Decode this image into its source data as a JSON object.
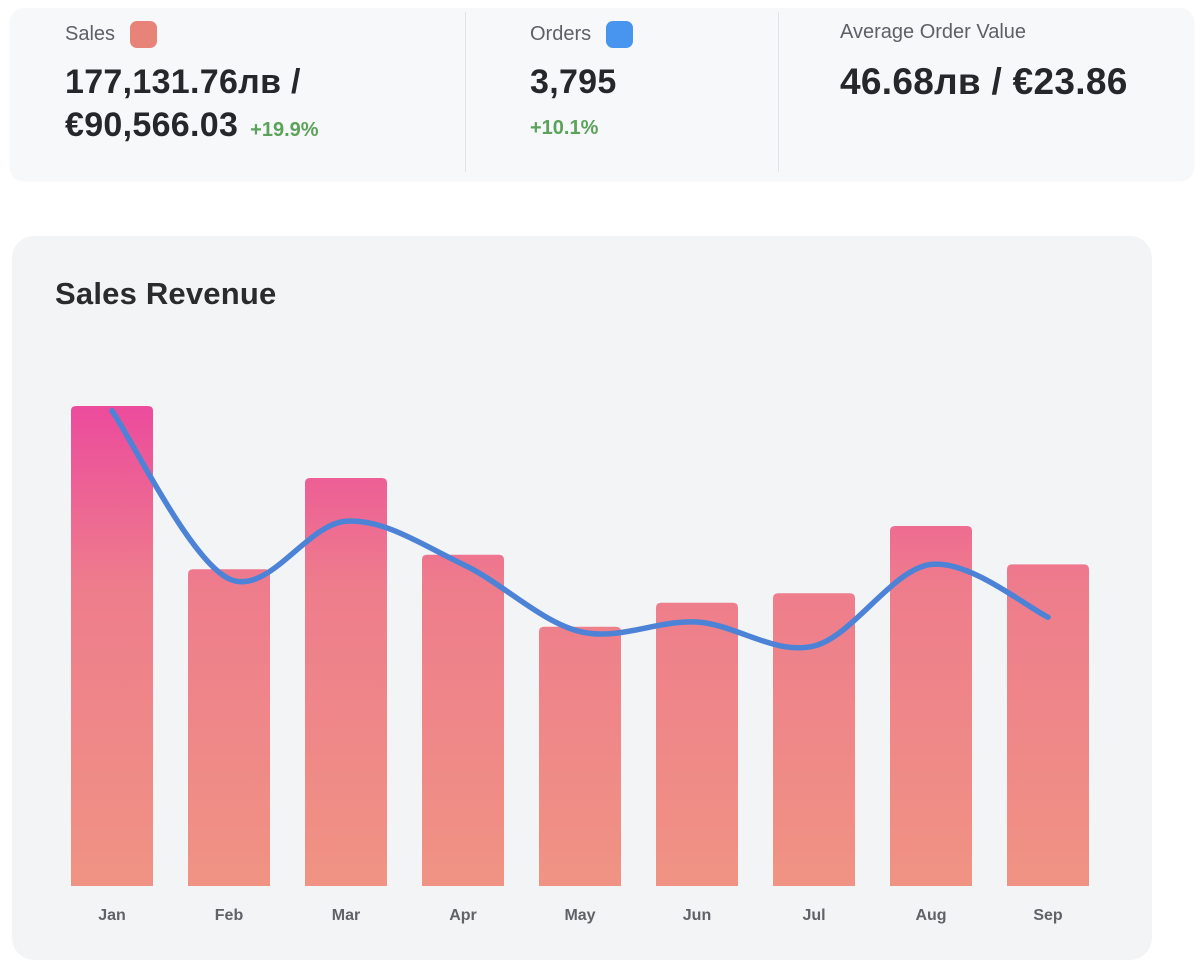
{
  "summary_bar": {
    "sales": {
      "label": "Sales",
      "swatch_color": "#e8837a",
      "value_line1": "177,131.76лв /",
      "value_line2": "€90,566.03",
      "delta": "+19.9%"
    },
    "orders": {
      "label": "Orders",
      "swatch_color": "#4795ef",
      "value": "3,795",
      "delta": "+10.1%"
    },
    "average_order_value": {
      "label": "Average Order Value",
      "value": "46.68лв / €23.86"
    }
  },
  "sales_revenue_card": {
    "title": "Sales Revenue"
  },
  "chart_data": {
    "type": "combo",
    "title": "Sales Revenue",
    "categories": [
      "Jan",
      "Feb",
      "Mar",
      "Apr",
      "May",
      "Jun",
      "Jul",
      "Aug",
      "Sep"
    ],
    "series": [
      {
        "name": "Sales",
        "type": "bar",
        "values": [
          100,
          66,
          85,
          69,
          54,
          59,
          61,
          75,
          67
        ]
      },
      {
        "name": "Orders",
        "type": "line",
        "values": [
          99,
          64,
          76,
          67,
          53,
          55,
          50,
          67,
          56
        ]
      }
    ],
    "ylim": [
      0,
      100
    ],
    "value_scale": "percent-of-tallest-bar (no y-axis tick labels visible in chart)",
    "grid": false,
    "legend_position": "none (series swatches shown in top summary bar)",
    "colors": {
      "bar_gradient_top": "#ec4b9c",
      "bar_gradient_mid": "#ee7d8c",
      "bar_gradient_bottom": "#f09384",
      "line": "#4d83d6",
      "delta_green": "#5da25c"
    }
  }
}
